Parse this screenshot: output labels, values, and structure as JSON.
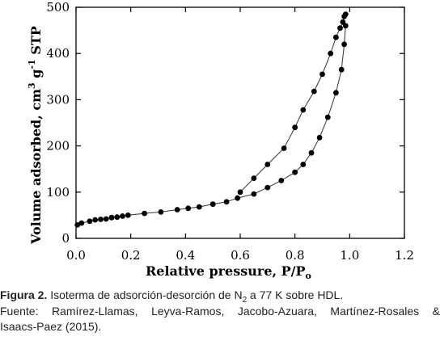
{
  "chart_data": {
    "type": "scatter",
    "x_label": "Relative pressure, P/P",
    "x_label_sub": "o",
    "y_label": "Volume adsorbed, cm",
    "y_label_sup": "3",
    "y_label_mid": " g",
    "y_label_sup2": "-1",
    "y_label_end": " STP",
    "xlim": [
      0.0,
      1.2
    ],
    "ylim": [
      0,
      500
    ],
    "x_ticks": [
      "0.0",
      "0.2",
      "0.4",
      "0.6",
      "0.8",
      "1.0",
      "1.2"
    ],
    "y_ticks": [
      "0",
      "100",
      "200",
      "300",
      "400",
      "500"
    ],
    "grid": false,
    "series": [
      {
        "role": "adsorption",
        "x": [
          0.005,
          0.02,
          0.05,
          0.07,
          0.09,
          0.11,
          0.13,
          0.15,
          0.17,
          0.19,
          0.25,
          0.31,
          0.37,
          0.41,
          0.45,
          0.5,
          0.55,
          0.59,
          0.65,
          0.7,
          0.75,
          0.8,
          0.83,
          0.86,
          0.89,
          0.92,
          0.95,
          0.97,
          0.98,
          0.985
        ],
        "y": [
          29,
          33,
          37,
          40,
          41,
          42,
          45,
          46,
          48,
          50,
          54,
          57,
          62,
          65,
          68,
          74,
          79,
          87,
          96,
          110,
          125,
          143,
          160,
          185,
          218,
          262,
          315,
          365,
          420,
          460
        ]
      },
      {
        "role": "desorption",
        "x": [
          0.985,
          0.98,
          0.975,
          0.965,
          0.95,
          0.93,
          0.9,
          0.87,
          0.83,
          0.8,
          0.76,
          0.7,
          0.65,
          0.6
        ],
        "y": [
          485,
          480,
          468,
          455,
          435,
          400,
          355,
          318,
          278,
          240,
          195,
          160,
          130,
          100
        ]
      }
    ]
  },
  "caption": {
    "label": "Figura 2.",
    "text_before": " Isoterma de adsorción-desorción de N",
    "sub": "2",
    "text_after": " a 77 K sobre HDL.",
    "line2": "Fuente: Ramírez-Llamas, Leyva-Ramos, Jacobo-Azuara, Martínez-Rosales &",
    "line3": "Isaacs-Paez (2015)."
  }
}
